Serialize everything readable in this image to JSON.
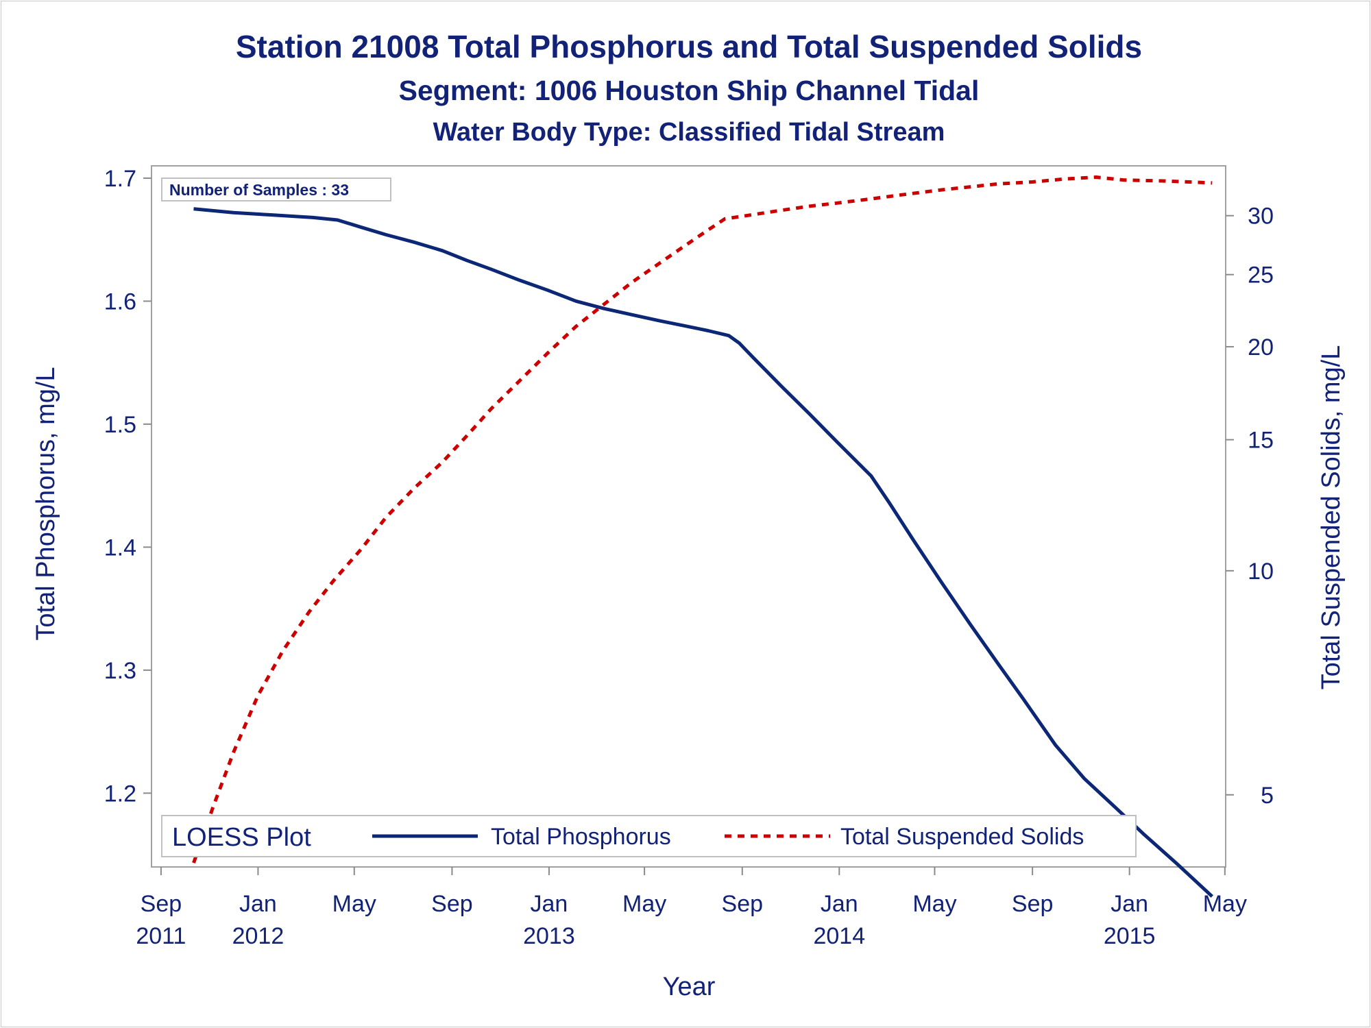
{
  "titles": {
    "line1": "Station 21008  Total Phosphorus and Total Suspended Solids",
    "line2": "Segment: 1006  Houston Ship Channel Tidal",
    "line3": "Water Body Type: Classified Tidal Stream"
  },
  "inset_text": "Number of Samples : 33",
  "legend": {
    "title": "LOESS Plot",
    "items": [
      {
        "label": "Total Phosphorus",
        "color": "#0b2775",
        "style": "solid"
      },
      {
        "label": "Total Suspended Solids",
        "color": "#cc0000",
        "style": "dashed"
      }
    ]
  },
  "chart_data": {
    "type": "line",
    "xlabel": "Year",
    "ylabel": "Total Phosphorus, mg/L",
    "y2label": "Total Suspended Solids, mg/L",
    "x_ticks": [
      {
        "date": "2011-09-01",
        "month": "Sep",
        "year": "2011"
      },
      {
        "date": "2012-01-01",
        "month": "Jan",
        "year": "2012"
      },
      {
        "date": "2012-05-01",
        "month": "May",
        "year": ""
      },
      {
        "date": "2012-09-01",
        "month": "Sep",
        "year": ""
      },
      {
        "date": "2013-01-01",
        "month": "Jan",
        "year": "2013"
      },
      {
        "date": "2013-05-01",
        "month": "May",
        "year": ""
      },
      {
        "date": "2013-09-01",
        "month": "Sep",
        "year": ""
      },
      {
        "date": "2014-01-01",
        "month": "Jan",
        "year": "2014"
      },
      {
        "date": "2014-05-01",
        "month": "May",
        "year": ""
      },
      {
        "date": "2014-09-01",
        "month": "Sep",
        "year": ""
      },
      {
        "date": "2015-01-01",
        "month": "Jan",
        "year": "2015"
      },
      {
        "date": "2015-05-01",
        "month": "May",
        "year": ""
      }
    ],
    "xlim": [
      "2011-08-20",
      "2015-05-02"
    ],
    "y_ticks": [
      1.2,
      1.3,
      1.4,
      1.5,
      1.6,
      1.7
    ],
    "ylim": [
      1.14,
      1.71
    ],
    "y2_ticks": [
      5,
      10,
      15,
      20,
      25,
      30
    ],
    "y2lim": [
      4.0,
      35.0
    ],
    "y2_scale": "log",
    "grid": false,
    "legend_position": "bottom-inside",
    "series": [
      {
        "name": "Total Phosphorus",
        "axis": "left",
        "color": "#0b2775",
        "style": "solid",
        "points": [
          [
            "2011-10-12",
            1.675
          ],
          [
            "2011-12-01",
            1.672
          ],
          [
            "2012-01-20",
            1.67
          ],
          [
            "2012-03-10",
            1.668
          ],
          [
            "2012-04-10",
            1.666
          ],
          [
            "2012-05-10",
            1.66
          ],
          [
            "2012-06-10",
            1.654
          ],
          [
            "2012-07-15",
            1.648
          ],
          [
            "2012-08-20",
            1.641
          ],
          [
            "2012-09-20",
            1.633
          ],
          [
            "2012-10-20",
            1.626
          ],
          [
            "2012-11-25",
            1.617
          ],
          [
            "2012-12-30",
            1.609
          ],
          [
            "2013-02-04",
            1.6
          ],
          [
            "2013-03-11",
            1.594
          ],
          [
            "2013-04-15",
            1.589
          ],
          [
            "2013-05-20",
            1.584
          ],
          [
            "2013-06-20",
            1.58
          ],
          [
            "2013-07-20",
            1.576
          ],
          [
            "2013-08-15",
            1.572
          ],
          [
            "2013-08-28",
            1.566
          ],
          [
            "2013-09-15",
            1.554
          ],
          [
            "2013-10-20",
            1.531
          ],
          [
            "2013-11-25",
            1.508
          ],
          [
            "2013-12-30",
            1.485
          ],
          [
            "2014-02-10",
            1.458
          ],
          [
            "2014-03-05",
            1.436
          ],
          [
            "2014-04-05",
            1.405
          ],
          [
            "2014-05-10",
            1.371
          ],
          [
            "2014-06-15",
            1.337
          ],
          [
            "2014-07-20",
            1.305
          ],
          [
            "2014-08-20",
            1.277
          ],
          [
            "2014-09-30",
            1.239
          ],
          [
            "2014-11-05",
            1.212
          ],
          [
            "2014-12-15",
            1.188
          ],
          [
            "2015-01-20",
            1.166
          ],
          [
            "2015-03-01",
            1.143
          ],
          [
            "2015-04-15",
            1.116
          ]
        ]
      },
      {
        "name": "Total Suspended Solids",
        "axis": "right",
        "color": "#cc0000",
        "style": "dashed",
        "points": [
          [
            "2011-10-12",
            4.05
          ],
          [
            "2011-11-05",
            4.8
          ],
          [
            "2011-12-01",
            5.7
          ],
          [
            "2012-01-01",
            6.8
          ],
          [
            "2012-02-01",
            7.8
          ],
          [
            "2012-03-05",
            8.8
          ],
          [
            "2012-04-05",
            9.7
          ],
          [
            "2012-05-10",
            10.7
          ],
          [
            "2012-06-10",
            11.8
          ],
          [
            "2012-07-15",
            12.9
          ],
          [
            "2012-08-20",
            14.0
          ],
          [
            "2012-09-20",
            15.2
          ],
          [
            "2012-10-20",
            16.5
          ],
          [
            "2012-11-25",
            18.0
          ],
          [
            "2012-12-30",
            19.6
          ],
          [
            "2013-02-04",
            21.3
          ],
          [
            "2013-03-11",
            22.8
          ],
          [
            "2013-04-15",
            24.4
          ],
          [
            "2013-05-20",
            25.9
          ],
          [
            "2013-06-20",
            27.3
          ],
          [
            "2013-07-20",
            28.7
          ],
          [
            "2013-08-10",
            29.7
          ],
          [
            "2013-09-15",
            30.1
          ],
          [
            "2013-10-20",
            30.5
          ],
          [
            "2013-11-25",
            30.9
          ],
          [
            "2013-12-30",
            31.2
          ],
          [
            "2014-02-10",
            31.6
          ],
          [
            "2014-03-20",
            32.0
          ],
          [
            "2014-05-10",
            32.5
          ],
          [
            "2014-06-15",
            32.8
          ],
          [
            "2014-07-20",
            33.1
          ],
          [
            "2014-09-01",
            33.3
          ],
          [
            "2014-10-10",
            33.6
          ],
          [
            "2014-11-20",
            33.8
          ],
          [
            "2014-12-25",
            33.5
          ],
          [
            "2015-02-15",
            33.4
          ],
          [
            "2015-04-15",
            33.2
          ]
        ]
      }
    ]
  }
}
